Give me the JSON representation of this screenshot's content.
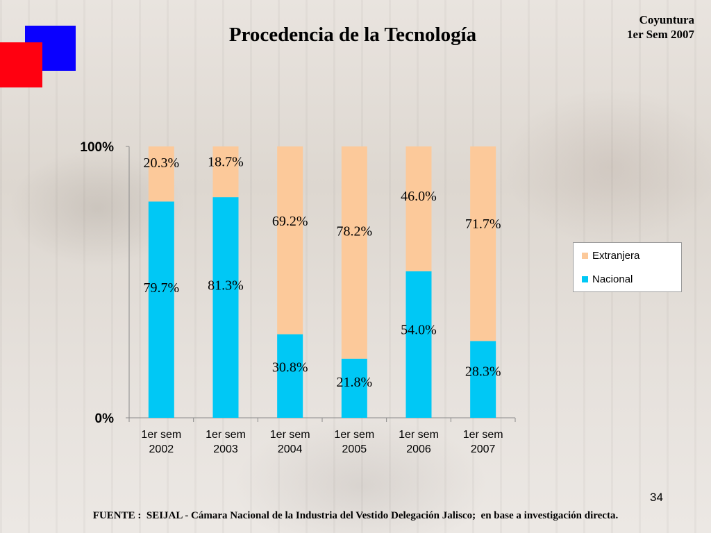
{
  "header": {
    "title": "Procedencia de la Tecnología",
    "corner_line1": "Coyuntura",
    "corner_line2": "1er Sem 2007"
  },
  "footer": {
    "page_number": "34",
    "source": "FUENTE :  SEIJAL - Cámara Nacional de la Industria del Vestido Delegación Jalisco;  en base a investigación directa."
  },
  "colors": {
    "accent_blue": "#0a00ff",
    "accent_red": "#ff0010",
    "nacional": "#00c8f5",
    "extranjera": "#fcc99a"
  },
  "chart_data": {
    "type": "bar",
    "stacked": true,
    "percent_stacked": true,
    "categories": [
      "1er sem\n2002",
      "1er sem\n2003",
      "1er sem\n2004",
      "1er sem\n2005",
      "1er sem\n2006",
      "1er sem\n2007"
    ],
    "series": [
      {
        "name": "Nacional",
        "values": [
          79.7,
          81.3,
          30.8,
          21.8,
          54.0,
          28.3
        ],
        "labels": [
          "79.7%",
          "81.3%",
          "30.8%",
          "21.8%",
          "54.0%",
          "28.3%"
        ],
        "color": "#00c8f5"
      },
      {
        "name": "Extranjera",
        "values": [
          20.3,
          18.7,
          69.2,
          78.2,
          46.0,
          71.7
        ],
        "labels": [
          "20.3%",
          "18.7%",
          "69.2%",
          "78.2%",
          "46.0%",
          "71.7%"
        ],
        "color": "#fcc99a"
      }
    ],
    "y_ticks": [
      "0%",
      "100%"
    ],
    "ylim": [
      0,
      100
    ],
    "legend": {
      "placement": "right",
      "order": [
        "Extranjera",
        "Nacional"
      ]
    }
  }
}
